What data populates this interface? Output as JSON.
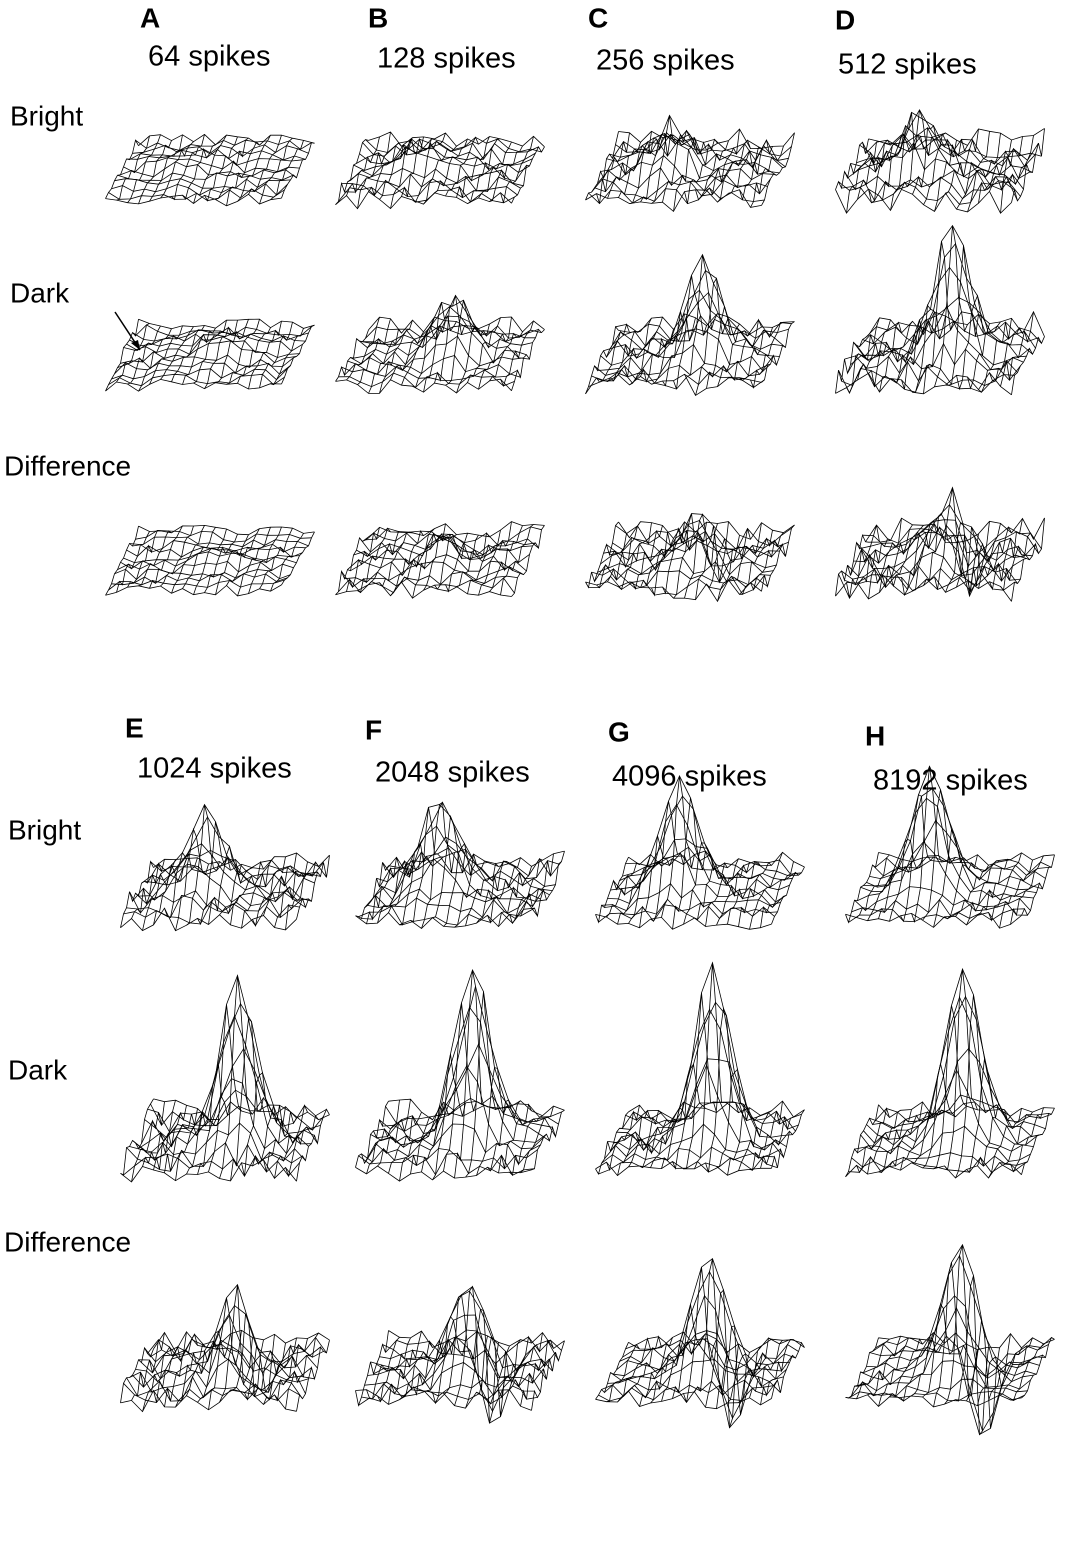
{
  "panels": [
    {
      "letter": "A",
      "label": "64 spikes"
    },
    {
      "letter": "B",
      "label": "128 spikes"
    },
    {
      "letter": "C",
      "label": "256 spikes"
    },
    {
      "letter": "D",
      "label": "512 spikes"
    },
    {
      "letter": "E",
      "label": "1024 spikes"
    },
    {
      "letter": "F",
      "label": "2048 spikes"
    },
    {
      "letter": "G",
      "label": "4096 spikes"
    },
    {
      "letter": "H",
      "label": "8192 spikes"
    }
  ],
  "rows_top": [
    "Bright",
    "Dark",
    "Difference"
  ],
  "rows_bottom": [
    "Bright",
    "Dark",
    "Difference"
  ]
}
